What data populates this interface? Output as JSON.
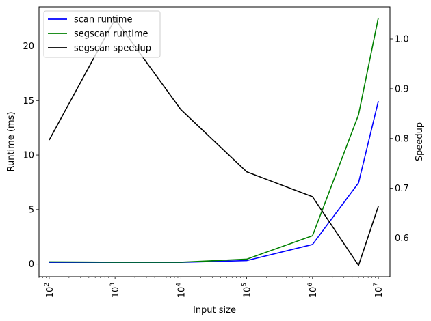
{
  "chart_data": {
    "type": "line",
    "xlabel": "Input size",
    "xscale": "log",
    "xlim": [
      70,
      15000000
    ],
    "x_ticks": [
      100,
      1000,
      10000,
      100000,
      1000000,
      10000000
    ],
    "x_tick_labels": [
      {
        "base": "10",
        "exp": "2"
      },
      {
        "base": "10",
        "exp": "3"
      },
      {
        "base": "10",
        "exp": "4"
      },
      {
        "base": "10",
        "exp": "5"
      },
      {
        "base": "10",
        "exp": "6"
      },
      {
        "base": "10",
        "exp": "7"
      }
    ],
    "left_axis": {
      "label": "Runtime (ms)",
      "ylim": [
        -1.15,
        23.6
      ],
      "ticks": [
        0,
        5,
        10,
        15,
        20
      ],
      "tick_labels": [
        "0",
        "5",
        "10",
        "15",
        "20"
      ]
    },
    "right_axis": {
      "label": "Speedup",
      "ylim": [
        0.5225,
        1.0645
      ],
      "ticks": [
        0.6,
        0.7,
        0.8,
        0.9,
        1.0
      ],
      "tick_labels": [
        "0.6",
        "0.7",
        "0.8",
        "0.9",
        "1.0"
      ]
    },
    "legend_position": "top-left",
    "series": [
      {
        "name": "scan runtime",
        "color": "#0000ff",
        "axis": "left",
        "points": [
          [
            100,
            0.15
          ],
          [
            1000,
            0.15
          ],
          [
            10000,
            0.15
          ],
          [
            100000,
            0.32
          ],
          [
            1000000,
            1.8
          ],
          [
            5000000,
            7.45
          ],
          [
            10000000,
            14.95
          ]
        ]
      },
      {
        "name": "segscan runtime",
        "color": "#008000",
        "axis": "left",
        "points": [
          [
            100,
            0.2
          ],
          [
            1000,
            0.17
          ],
          [
            10000,
            0.17
          ],
          [
            100000,
            0.45
          ],
          [
            1000000,
            2.6
          ],
          [
            5000000,
            13.7
          ],
          [
            10000000,
            22.6
          ]
        ]
      },
      {
        "name": "segscan speedup",
        "color": "#000000",
        "axis": "right",
        "points": [
          [
            100,
            0.797
          ],
          [
            1000,
            1.04
          ],
          [
            10000,
            0.858
          ],
          [
            100000,
            0.733
          ],
          [
            1000000,
            0.683
          ],
          [
            5000000,
            0.545
          ],
          [
            10000000,
            0.664
          ]
        ]
      }
    ]
  }
}
